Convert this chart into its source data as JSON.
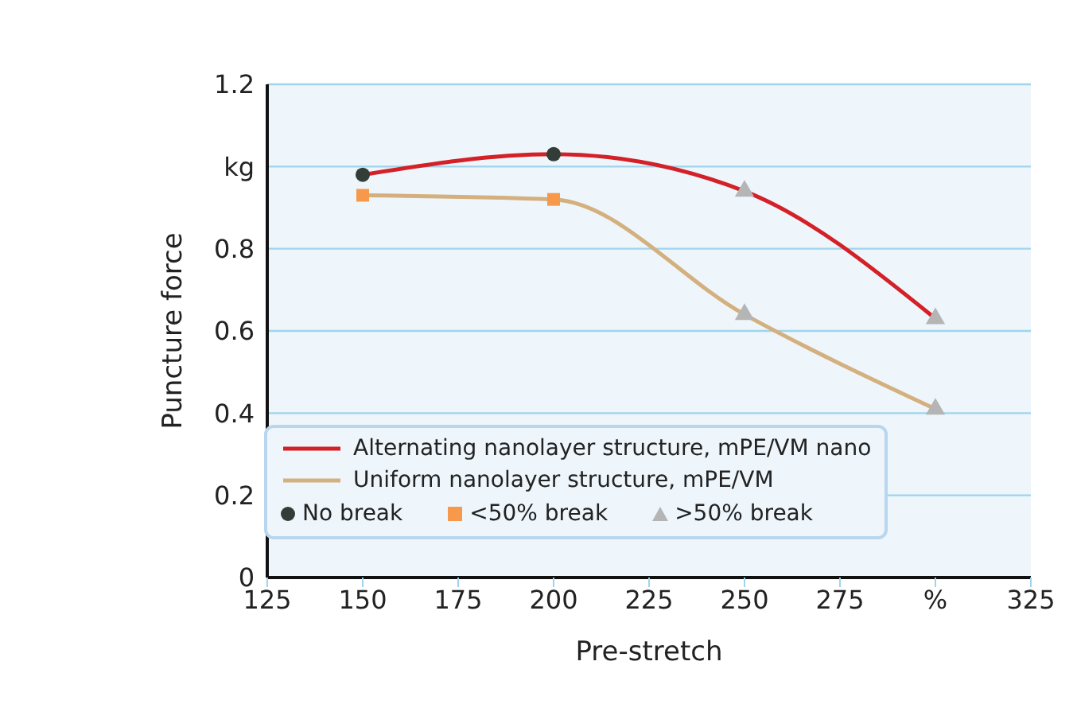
{
  "chart_data": {
    "type": "line",
    "xlabel": "Pre-stretch",
    "ylabel": "Puncture force",
    "xlim": [
      125,
      325
    ],
    "xticks": [
      125,
      150,
      175,
      200,
      225,
      250,
      275,
      {
        "value": 300,
        "label": "%"
      },
      325
    ],
    "ylim": [
      0,
      1.2
    ],
    "yticks": [
      0,
      0.2,
      0.4,
      0.6,
      0.8,
      {
        "value": 1,
        "label": "kg"
      },
      1.2
    ],
    "grid": "y",
    "legend": "bottom",
    "line_style": "solid",
    "series": [
      {
        "name": "Alternating nanolayer structure, mPE/VM nano",
        "marker": "none",
        "color": "#d42027",
        "x": [
          150,
          200,
          250,
          300
        ],
        "values": [
          0.98,
          1.03,
          0.94,
          0.63
        ]
      },
      {
        "name": "Uniform nanolayer structure, mPE/VM",
        "marker": "none",
        "color": "#d4b07f",
        "x": [
          150,
          200,
          250,
          300
        ],
        "values": [
          0.93,
          0.92,
          0.64,
          0.41
        ]
      },
      {
        "name": "No break",
        "type": "scatter",
        "marker": "circle",
        "color": "#333d38",
        "x": [
          150,
          200
        ],
        "values": [
          0.98,
          1.03
        ]
      },
      {
        "name": "<50% break",
        "type": "scatter",
        "marker": "square",
        "color": "#f7994a",
        "x": [
          150,
          200
        ],
        "values": [
          0.93,
          0.92
        ]
      },
      {
        "name": ">50% break",
        "type": "scatter",
        "marker": "triangle",
        "color": "#b5b5b5",
        "x": [
          250,
          250,
          300,
          300
        ],
        "values": [
          0.94,
          0.64,
          0.63,
          0.41
        ]
      }
    ]
  }
}
